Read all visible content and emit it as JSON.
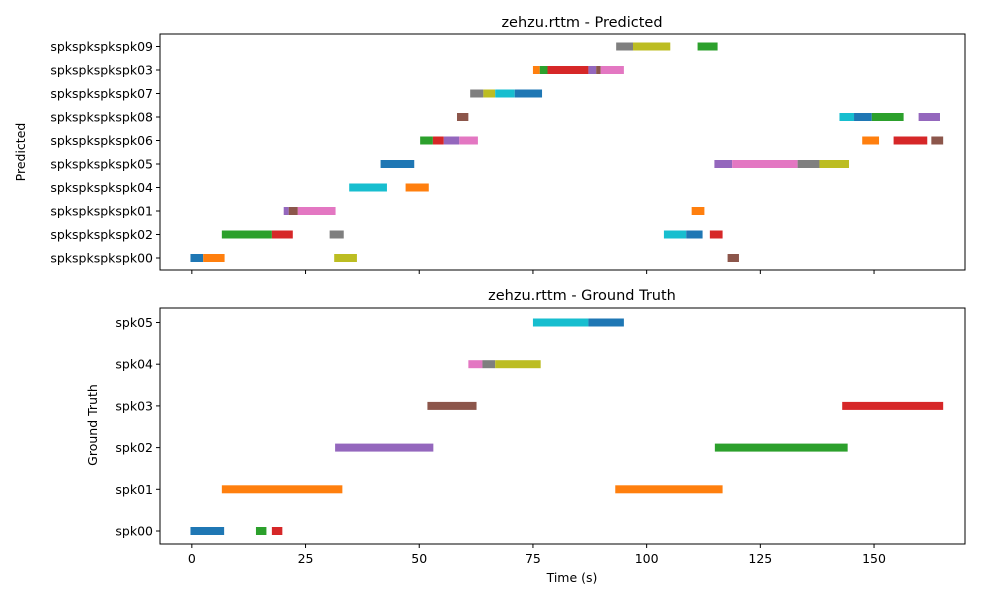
{
  "chart_data": [
    {
      "type": "broken-barh",
      "title": "zehzu.rttm - Predicted",
      "ylabel": "Predicted",
      "xlabel": "",
      "xlim": [
        -7,
        170
      ],
      "xticks": [
        0,
        25,
        50,
        75,
        100,
        125,
        150
      ],
      "show_x_tick_labels": false,
      "grid": false,
      "categories": [
        "spkspkspkspk00",
        "spkspkspkspk02",
        "spkspkspkspk01",
        "spkspkspkspk04",
        "spkspkspkspk05",
        "spkspkspkspk06",
        "spkspkspkspk08",
        "spkspkspkspk07",
        "spkspkspkspk03",
        "spkspkspkspk09"
      ],
      "segments": [
        {
          "row": 0,
          "start": -0.3,
          "end": 2.5,
          "color": "#1f77b4"
        },
        {
          "row": 0,
          "start": 2.5,
          "end": 7.2,
          "color": "#ff7f0e"
        },
        {
          "row": 0,
          "start": 31.3,
          "end": 36.3,
          "color": "#bcbd22"
        },
        {
          "row": 0,
          "start": 117.8,
          "end": 120.3,
          "color": "#8c564b"
        },
        {
          "row": 1,
          "start": 6.6,
          "end": 17.6,
          "color": "#2ca02c"
        },
        {
          "row": 1,
          "start": 17.6,
          "end": 22.2,
          "color": "#d62728"
        },
        {
          "row": 1,
          "start": 30.3,
          "end": 33.4,
          "color": "#7f7f7f"
        },
        {
          "row": 1,
          "start": 103.8,
          "end": 108.7,
          "color": "#17becf"
        },
        {
          "row": 1,
          "start": 108.7,
          "end": 112.3,
          "color": "#1f77b4"
        },
        {
          "row": 1,
          "start": 113.9,
          "end": 116.7,
          "color": "#d62728"
        },
        {
          "row": 2,
          "start": 20.2,
          "end": 21.3,
          "color": "#9467bd"
        },
        {
          "row": 2,
          "start": 21.3,
          "end": 23.3,
          "color": "#8c564b"
        },
        {
          "row": 2,
          "start": 23.3,
          "end": 31.6,
          "color": "#e377c2"
        },
        {
          "row": 2,
          "start": 109.9,
          "end": 112.7,
          "color": "#ff7f0e"
        },
        {
          "row": 3,
          "start": 34.6,
          "end": 42.9,
          "color": "#17becf"
        },
        {
          "row": 3,
          "start": 47.0,
          "end": 52.1,
          "color": "#ff7f0e"
        },
        {
          "row": 4,
          "start": 41.5,
          "end": 48.9,
          "color": "#1f77b4"
        },
        {
          "row": 4,
          "start": 114.9,
          "end": 118.8,
          "color": "#9467bd"
        },
        {
          "row": 4,
          "start": 118.8,
          "end": 133.2,
          "color": "#e377c2"
        },
        {
          "row": 4,
          "start": 133.2,
          "end": 138.0,
          "color": "#7f7f7f"
        },
        {
          "row": 4,
          "start": 138.0,
          "end": 144.5,
          "color": "#bcbd22"
        },
        {
          "row": 5,
          "start": 50.2,
          "end": 53.0,
          "color": "#2ca02c"
        },
        {
          "row": 5,
          "start": 53.0,
          "end": 55.4,
          "color": "#d62728"
        },
        {
          "row": 5,
          "start": 55.4,
          "end": 58.8,
          "color": "#9467bd"
        },
        {
          "row": 5,
          "start": 58.8,
          "end": 62.9,
          "color": "#e377c2"
        },
        {
          "row": 5,
          "start": 147.4,
          "end": 151.1,
          "color": "#ff7f0e"
        },
        {
          "row": 5,
          "start": 154.3,
          "end": 161.7,
          "color": "#d62728"
        },
        {
          "row": 5,
          "start": 162.6,
          "end": 165.2,
          "color": "#8c564b"
        },
        {
          "row": 6,
          "start": 58.3,
          "end": 60.8,
          "color": "#8c564b"
        },
        {
          "row": 6,
          "start": 142.4,
          "end": 145.6,
          "color": "#17becf"
        },
        {
          "row": 6,
          "start": 145.6,
          "end": 149.5,
          "color": "#1f77b4"
        },
        {
          "row": 6,
          "start": 149.5,
          "end": 156.5,
          "color": "#2ca02c"
        },
        {
          "row": 6,
          "start": 159.8,
          "end": 164.5,
          "color": "#9467bd"
        },
        {
          "row": 7,
          "start": 61.2,
          "end": 64.1,
          "color": "#7f7f7f"
        },
        {
          "row": 7,
          "start": 64.1,
          "end": 66.7,
          "color": "#bcbd22"
        },
        {
          "row": 7,
          "start": 66.7,
          "end": 71.0,
          "color": "#17becf"
        },
        {
          "row": 7,
          "start": 71.0,
          "end": 77.0,
          "color": "#1f77b4"
        },
        {
          "row": 8,
          "start": 75.0,
          "end": 76.5,
          "color": "#ff7f0e"
        },
        {
          "row": 8,
          "start": 76.5,
          "end": 78.2,
          "color": "#2ca02c"
        },
        {
          "row": 8,
          "start": 78.2,
          "end": 87.2,
          "color": "#d62728"
        },
        {
          "row": 8,
          "start": 87.2,
          "end": 88.9,
          "color": "#9467bd"
        },
        {
          "row": 8,
          "start": 88.9,
          "end": 89.9,
          "color": "#8c564b"
        },
        {
          "row": 8,
          "start": 89.9,
          "end": 95.0,
          "color": "#e377c2"
        },
        {
          "row": 9,
          "start": 93.3,
          "end": 97.0,
          "color": "#7f7f7f"
        },
        {
          "row": 9,
          "start": 97.0,
          "end": 105.2,
          "color": "#bcbd22"
        },
        {
          "row": 9,
          "start": 111.2,
          "end": 115.6,
          "color": "#2ca02c"
        }
      ]
    },
    {
      "type": "broken-barh",
      "title": "zehzu.rttm - Ground Truth",
      "ylabel": "Ground Truth",
      "xlabel": "Time (s)",
      "xlim": [
        -7,
        170
      ],
      "xticks": [
        0,
        25,
        50,
        75,
        100,
        125,
        150
      ],
      "show_x_tick_labels": true,
      "grid": false,
      "categories": [
        "spk00",
        "spk01",
        "spk02",
        "spk03",
        "spk04",
        "spk05"
      ],
      "segments": [
        {
          "row": 0,
          "start": -0.3,
          "end": 7.1,
          "color": "#1f77b4"
        },
        {
          "row": 0,
          "start": 14.1,
          "end": 16.4,
          "color": "#2ca02c"
        },
        {
          "row": 0,
          "start": 17.6,
          "end": 19.9,
          "color": "#d62728"
        },
        {
          "row": 1,
          "start": 6.6,
          "end": 33.1,
          "color": "#ff7f0e"
        },
        {
          "row": 1,
          "start": 93.1,
          "end": 116.7,
          "color": "#ff7f0e"
        },
        {
          "row": 2,
          "start": 31.5,
          "end": 53.1,
          "color": "#9467bd"
        },
        {
          "row": 2,
          "start": 115.0,
          "end": 144.2,
          "color": "#2ca02c"
        },
        {
          "row": 3,
          "start": 51.8,
          "end": 62.6,
          "color": "#8c564b"
        },
        {
          "row": 3,
          "start": 143.0,
          "end": 165.2,
          "color": "#d62728"
        },
        {
          "row": 4,
          "start": 60.8,
          "end": 63.9,
          "color": "#e377c2"
        },
        {
          "row": 4,
          "start": 63.9,
          "end": 66.7,
          "color": "#7f7f7f"
        },
        {
          "row": 4,
          "start": 66.7,
          "end": 76.7,
          "color": "#bcbd22"
        },
        {
          "row": 5,
          "start": 75.0,
          "end": 87.2,
          "color": "#17becf"
        },
        {
          "row": 5,
          "start": 87.2,
          "end": 95.0,
          "color": "#1f77b4"
        }
      ]
    }
  ]
}
